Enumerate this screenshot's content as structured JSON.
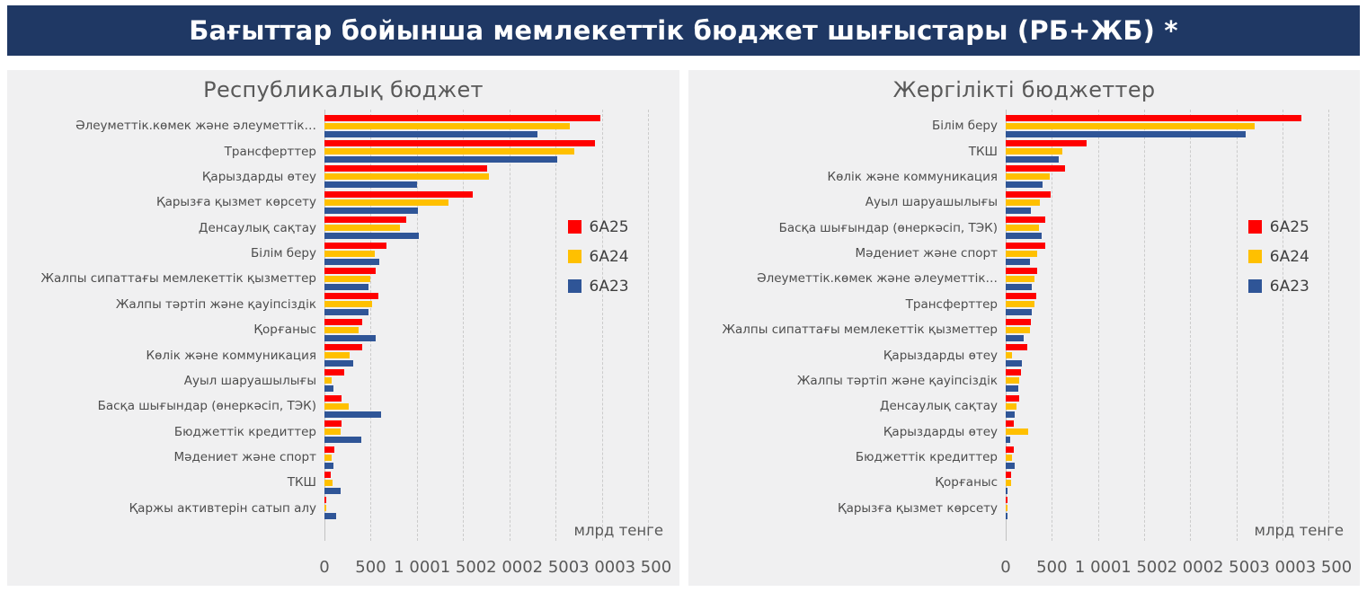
{
  "page": {
    "title": "Бағыттар бойынша мемлекеттік бюджет шығыстары (РБ+ЖБ) *"
  },
  "colors": {
    "header_bg": "#1F3864",
    "header_text": "#FFFFFF",
    "panel_bg": "#F0F0F1",
    "series_red": "#FF0000",
    "series_yellow": "#FFC000",
    "series_blue": "#2F5597",
    "text_gray": "#595959",
    "gridline": "#CBCBCB"
  },
  "legend": {
    "items": [
      {
        "label": "6A25",
        "color": "#FF0000"
      },
      {
        "label": "6A24",
        "color": "#FFC000"
      },
      {
        "label": "6A23",
        "color": "#2F5597"
      }
    ]
  },
  "axis": {
    "ticks": [
      "0",
      "500",
      "1 000",
      "1 500",
      "2 000",
      "2 500",
      "3 000",
      "3 500"
    ],
    "tick_step": 500,
    "domain_max": 3700,
    "xlim": [
      0,
      3500
    ],
    "unit_label": "млрд тенге",
    "grid": "dashed-vertical"
  },
  "chart_data": [
    {
      "type": "bar",
      "orientation": "horizontal",
      "title": "Республикалық бюджет",
      "xlabel": "млрд тенге",
      "xlim": [
        0,
        3500
      ],
      "legend_position": "inside-right",
      "categories": [
        "Әлеуметтік.көмек және әлеуметтік…",
        "Трансферттер",
        "Қарыздарды өтеу",
        "Қарызға қызмет көрсету",
        "Денсаулық сақтау",
        "Білім беру",
        "Жалпы сипаттағы мемлекеттік қызметтер",
        "Жалпы тәртіп және қауіпсіздік",
        "Қорғаныс",
        "Көлік және коммуникация",
        "Ауыл шаруашылығы",
        "Басқа шығындар (өнеркәсіп, ТЭК)",
        "Бюджеттік кредиттер",
        "Мәдениет және спорт",
        "ТКШ",
        "Қаржы активтерін сатып алу"
      ],
      "series": [
        {
          "name": "6A25",
          "color": "#FF0000",
          "values": [
            2980,
            2920,
            1760,
            1600,
            880,
            670,
            550,
            580,
            410,
            405,
            215,
            185,
            185,
            110,
            65,
            10
          ]
        },
        {
          "name": "6A24",
          "color": "#FFC000",
          "values": [
            2650,
            2700,
            1780,
            1340,
            820,
            540,
            500,
            510,
            370,
            275,
            80,
            260,
            170,
            80,
            90,
            20
          ]
        },
        {
          "name": "6A23",
          "color": "#2F5597",
          "values": [
            2300,
            2520,
            1000,
            1010,
            1020,
            590,
            480,
            480,
            550,
            310,
            100,
            610,
            400,
            100,
            170,
            130
          ]
        }
      ]
    },
    {
      "type": "bar",
      "orientation": "horizontal",
      "title": "Жергілікті бюджеттер",
      "xlabel": "млрд тенге",
      "xlim": [
        0,
        3500
      ],
      "legend_position": "inside-right",
      "categories": [
        "Білім беру",
        "ТКШ",
        "Көлік және коммуникация",
        "Ауыл шаруашылығы",
        "Басқа шығындар (өнеркәсіп, ТЭК)",
        "Мәдениет және спорт",
        "Әлеуметтік.көмек және әлеуметтік…",
        "Трансферттер",
        "Жалпы сипаттағы мемлекеттік қызметтер",
        "Қарыздарды өтеу",
        "Жалпы тәртіп және қауіпсіздік",
        "Денсаулық сақтау",
        "Қарыздарды өтеу",
        "Бюджеттік кредиттер",
        "Қорғаныс",
        "Қарызға қызмет көрсету"
      ],
      "series": [
        {
          "name": "6A25",
          "color": "#FF0000",
          "values": [
            3200,
            880,
            640,
            485,
            430,
            430,
            340,
            335,
            275,
            235,
            170,
            145,
            85,
            85,
            55,
            8
          ]
        },
        {
          "name": "6A24",
          "color": "#FFC000",
          "values": [
            2700,
            610,
            475,
            370,
            360,
            340,
            315,
            310,
            265,
            65,
            145,
            120,
            245,
            65,
            60,
            10
          ]
        },
        {
          "name": "6A23",
          "color": "#2F5597",
          "values": [
            2600,
            570,
            395,
            275,
            390,
            265,
            280,
            280,
            195,
            180,
            135,
            100,
            45,
            100,
            20,
            18
          ]
        }
      ]
    }
  ]
}
